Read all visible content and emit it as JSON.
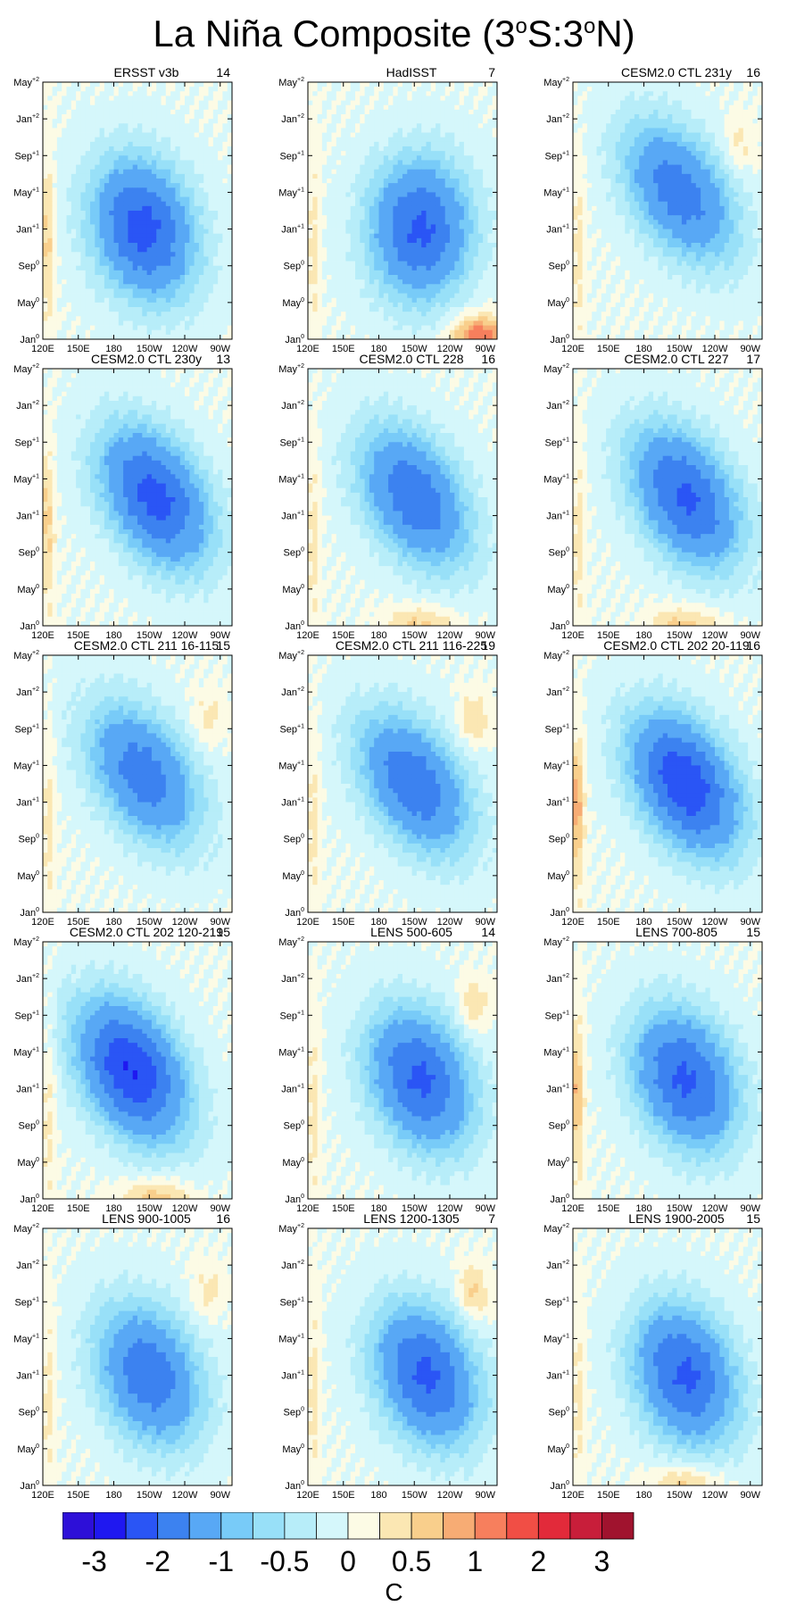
{
  "title": {
    "prefix": "La Niña Composite (3",
    "deg1": "o",
    "mid": "S:3",
    "deg2": "o",
    "suffix": "N)"
  },
  "chart_data": {
    "type": "heatmap",
    "description_axis": "Hovmöller composite of equatorial SST anomaly",
    "x_ticks": [
      "120E",
      "150E",
      "180",
      "150W",
      "120W",
      "90W"
    ],
    "x_range_deg_east": [
      120,
      280
    ],
    "y_ticks": [
      {
        "label": "Jan",
        "sup": "0"
      },
      {
        "label": "May",
        "sup": "0"
      },
      {
        "label": "Sep",
        "sup": "0"
      },
      {
        "label": "Jan",
        "sup": "+1"
      },
      {
        "label": "May",
        "sup": "+1"
      },
      {
        "label": "Sep",
        "sup": "+1"
      },
      {
        "label": "Jan",
        "sup": "+2"
      },
      {
        "label": "May",
        "sup": "+2"
      }
    ],
    "y_range_months": [
      0,
      28
    ],
    "units": "C",
    "levels": [
      "-3",
      "-2",
      "-1",
      "-0.5",
      "0",
      "0.5",
      "1",
      "2",
      "3"
    ],
    "colorbar_colors": [
      "#2d0fd8",
      "#1f18f0",
      "#2a55f5",
      "#3c82f0",
      "#58a8f5",
      "#78cbf8",
      "#98e0f8",
      "#b7edf9",
      "#d5f7fb",
      "#fcfbe5",
      "#fbe7b3",
      "#f9cf8c",
      "#f7ac74",
      "#f77f5d",
      "#f14e45",
      "#e22a3a",
      "#c81e3a",
      "#a0132e"
    ],
    "panels": [
      {
        "title": "ERSST v3b",
        "count": "14",
        "minval": -2.2,
        "centerLon": 205,
        "centerMon": 12,
        "tilt": 0.25,
        "posAmp": 0.3,
        "posLoc": "west"
      },
      {
        "title": "HadISST",
        "count": "7",
        "minval": -2.1,
        "centerLon": 215,
        "centerMon": 12,
        "tilt": 0.0,
        "posAmp": 1.4,
        "posLoc": "southeast"
      },
      {
        "title": "CESM2.0 CTL 231y",
        "count": "16",
        "minval": -1.8,
        "centerLon": 210,
        "centerMon": 16,
        "tilt": 0.6,
        "posAmp": 0.4,
        "posLoc": "northeast"
      },
      {
        "title": "CESM2.0 CTL 230y",
        "count": "13",
        "minval": -2.2,
        "centerLon": 215,
        "centerMon": 14,
        "tilt": 0.55,
        "posAmp": 0.3,
        "posLoc": "west"
      },
      {
        "title": "CESM2.0 CTL 228",
        "count": "16",
        "minval": -1.9,
        "centerLon": 210,
        "centerMon": 14,
        "tilt": 0.55,
        "posAmp": 0.6,
        "posLoc": "south"
      },
      {
        "title": "CESM2.0 CTL 227",
        "count": "17",
        "minval": -2.1,
        "centerLon": 215,
        "centerMon": 14,
        "tilt": 0.55,
        "posAmp": 0.6,
        "posLoc": "south"
      },
      {
        "title": "CESM2.0 CTL 211 16-115",
        "count": "15",
        "minval": -1.8,
        "centerLon": 205,
        "centerMon": 15,
        "tilt": 0.6,
        "posAmp": 0.4,
        "posLoc": "northeast"
      },
      {
        "title": "CESM2.0 CTL 211 116-225",
        "count": "19",
        "minval": -1.9,
        "centerLon": 210,
        "centerMon": 14,
        "tilt": 0.6,
        "posAmp": 0.5,
        "posLoc": "northeast"
      },
      {
        "title": "CESM2.0 CTL 202 20-119",
        "count": "16",
        "minval": -2.4,
        "centerLon": 215,
        "centerMon": 14,
        "tilt": 0.55,
        "posAmp": 0.6,
        "posLoc": "west"
      },
      {
        "title": "CESM2.0 CTL 202 120-219",
        "count": "15",
        "minval": -2.5,
        "centerLon": 195,
        "centerMon": 14,
        "tilt": 0.5,
        "posAmp": 0.7,
        "posLoc": "south"
      },
      {
        "title": "LENS 500-605",
        "count": "14",
        "minval": -2.1,
        "centerLon": 215,
        "centerMon": 13,
        "tilt": 0.35,
        "posAmp": 0.5,
        "posLoc": "northeast"
      },
      {
        "title": "LENS 700-805",
        "count": "15",
        "minval": -2.1,
        "centerLon": 215,
        "centerMon": 13,
        "tilt": 0.35,
        "posAmp": 0.5,
        "posLoc": "west"
      },
      {
        "title": "LENS 900-1005",
        "count": "16",
        "minval": -1.9,
        "centerLon": 210,
        "centerMon": 12,
        "tilt": 0.35,
        "posAmp": 0.4,
        "posLoc": "northeast"
      },
      {
        "title": "LENS 1200-1305",
        "count": "7",
        "minval": -2.1,
        "centerLon": 220,
        "centerMon": 12,
        "tilt": 0.35,
        "posAmp": 0.6,
        "posLoc": "northeast"
      },
      {
        "title": "LENS 1900-2005",
        "count": "15",
        "minval": -2.1,
        "centerLon": 215,
        "centerMon": 12,
        "tilt": 0.3,
        "posAmp": 0.7,
        "posLoc": "south"
      }
    ]
  }
}
